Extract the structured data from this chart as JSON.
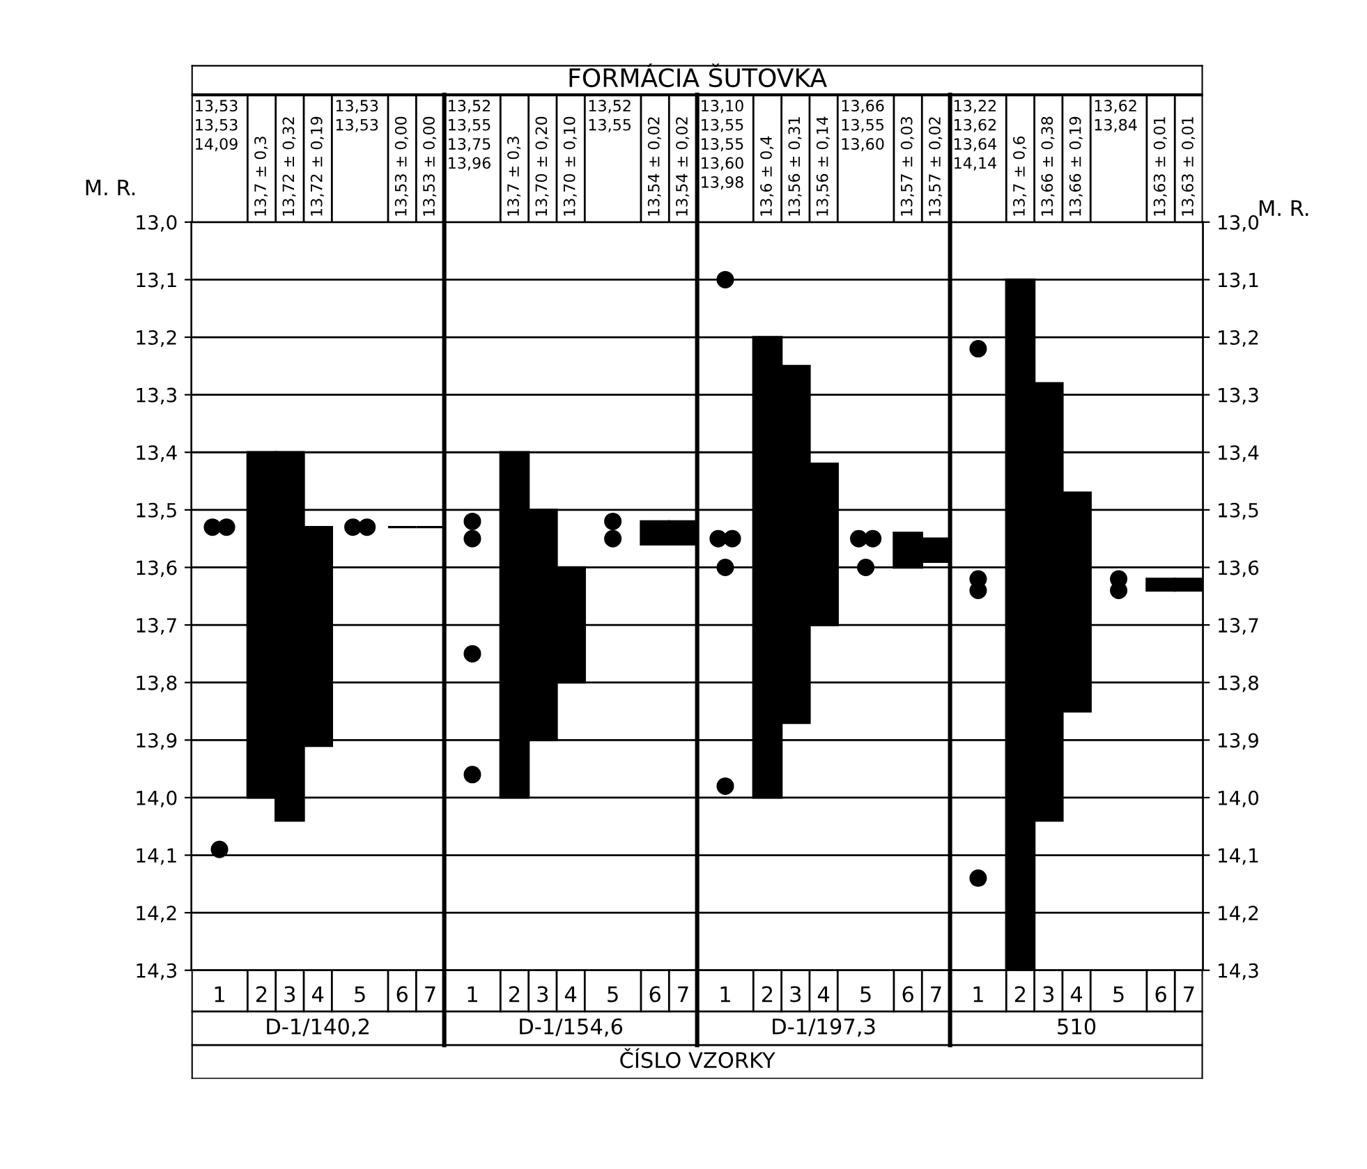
{
  "chart_data": {
    "type": "bar",
    "title": "FORMÁCIA ŠUTOVKA",
    "xlabel": "ČÍSLO VZORKY",
    "ylabel": "M. R.",
    "y2label": "M. R.",
    "categories": [
      "1",
      "2",
      "3",
      "4",
      "5",
      "6",
      "7",
      "1",
      "2",
      "3",
      "4",
      "5",
      "6",
      "7",
      "1",
      "2",
      "3",
      "4",
      "5",
      "6",
      "7",
      "1",
      "2",
      "3",
      "4",
      "5",
      "6",
      "7"
    ],
    "ylim": [
      14.3,
      13.0
    ],
    "yticks": [
      {
        "value": 13.0,
        "label": "13,0"
      },
      {
        "value": 13.1,
        "label": "13,1"
      },
      {
        "value": 13.2,
        "label": "13,2"
      },
      {
        "value": 13.3,
        "label": "13,3"
      },
      {
        "value": 13.4,
        "label": "13,4"
      },
      {
        "value": 13.5,
        "label": "13,5"
      },
      {
        "value": 13.6,
        "label": "13,6"
      },
      {
        "value": 13.7,
        "label": "13,7"
      },
      {
        "value": 13.8,
        "label": "13,8"
      },
      {
        "value": 13.9,
        "label": "13,9"
      },
      {
        "value": 14.0,
        "label": "14,0"
      },
      {
        "value": 14.1,
        "label": "14,1"
      },
      {
        "value": 14.2,
        "label": "14,2"
      },
      {
        "value": 14.3,
        "label": "14,3"
      }
    ],
    "y2lim": [
      14.3,
      13.0
    ],
    "y2ticks": [
      {
        "value": 13.0,
        "label": "13,0"
      },
      {
        "value": 13.1,
        "label": "13,1"
      },
      {
        "value": 13.2,
        "label": "13,2"
      },
      {
        "value": 13.3,
        "label": "13,3"
      },
      {
        "value": 13.4,
        "label": "13,4"
      },
      {
        "value": 13.5,
        "label": "13,5"
      },
      {
        "value": 13.6,
        "label": "13,6"
      },
      {
        "value": 13.7,
        "label": "13,7"
      },
      {
        "value": 13.8,
        "label": "13,8"
      },
      {
        "value": 13.9,
        "label": "13,9"
      },
      {
        "value": 14.0,
        "label": "14,0"
      },
      {
        "value": 14.1,
        "label": "14,1"
      },
      {
        "value": 14.2,
        "label": "14,2"
      },
      {
        "value": 14.3,
        "label": "14,3"
      }
    ],
    "grid": true,
    "series": [
      {
        "color": "#000000",
        "base": [
          null,
          13.4,
          13.4,
          13.53,
          null,
          13.53,
          13.53,
          null,
          13.4,
          13.5,
          13.6,
          null,
          13.52,
          13.52,
          null,
          13.2,
          13.25,
          13.42,
          null,
          13.54,
          13.55,
          null,
          13.1,
          13.28,
          13.47,
          null,
          13.62,
          13.62
        ],
        "values": [
          null,
          0.6,
          0.64,
          0.38,
          null,
          0,
          0,
          null,
          0.6,
          0.4,
          0.2,
          null,
          0.04,
          0.04,
          null,
          0.8,
          0.62,
          0.28,
          null,
          0.06,
          0.04,
          null,
          1.2,
          0.76,
          0.38,
          null,
          0.02,
          0.02
        ]
      },
      {
        "type": "scatter",
        "color": "#000000",
        "marker": "circle",
        "values": [
          13.53,
          null,
          null,
          null,
          13.53,
          null,
          null,
          13.52,
          null,
          null,
          null,
          13.52,
          null,
          null,
          13.1,
          null,
          null,
          null,
          13.55,
          null,
          null,
          13.22,
          null,
          null,
          null,
          13.62,
          null,
          null
        ]
      },
      {
        "type": "scatter",
        "color": "#000000",
        "marker": "circle",
        "values": [
          13.53,
          null,
          null,
          null,
          13.53,
          null,
          null,
          13.55,
          null,
          null,
          null,
          13.55,
          null,
          null,
          13.55,
          null,
          null,
          null,
          13.55,
          null,
          null,
          13.62,
          null,
          null,
          null,
          13.64,
          null,
          null
        ]
      },
      {
        "type": "scatter",
        "color": "#000000",
        "marker": "circle",
        "values": [
          14.09,
          null,
          null,
          null,
          null,
          null,
          null,
          13.75,
          null,
          null,
          null,
          null,
          null,
          null,
          13.55,
          null,
          null,
          null,
          13.6,
          null,
          null,
          13.64,
          null,
          null,
          null,
          null,
          null,
          null
        ]
      },
      {
        "type": "scatter",
        "color": "#000000",
        "marker": "circle",
        "values": [
          null,
          null,
          null,
          null,
          null,
          null,
          null,
          13.96,
          null,
          null,
          null,
          null,
          null,
          null,
          13.6,
          null,
          null,
          null,
          null,
          null,
          null,
          14.14,
          null,
          null,
          null,
          null,
          null,
          null
        ]
      },
      {
        "type": "scatter",
        "color": "#000000",
        "marker": "circle",
        "values": [
          null,
          null,
          null,
          null,
          null,
          null,
          null,
          null,
          null,
          null,
          null,
          null,
          null,
          null,
          13.98,
          null,
          null,
          null,
          null,
          null,
          null,
          null,
          null,
          null,
          null,
          null,
          null,
          null
        ]
      }
    ],
    "annotations": [
      "D-1/140,2",
      "D-1/154,6",
      "D-1/197,3",
      "510",
      "13,53\n13,53\n14,09",
      "13,7 ± 0,3",
      "13,72 ± 0,32",
      "13,72 ± 0,19",
      "13,53\n13,53",
      "13,53 ± 0,00",
      "13,53 ± 0,00",
      "13,52\n13,55\n13,75\n13,96",
      "13,7 ± 0,3",
      "13,70 ± 0,20",
      "13,70 ± 0,10",
      "13,52\n13,55",
      "13,54 ± 0,02",
      "13,54 ± 0,02",
      "13,10\n13,55\n13,55\n13,60\n13,98",
      "13,6 ± 0,4",
      "13,56 ± 0,31",
      "13,56 ± 0,14",
      "13,66\n13,55\n13,60",
      "13,57 ± 0,03",
      "13,57 ± 0,02",
      "13,22\n13,62\n13,64\n14,14",
      "13,7 ± 0,6",
      "13,66 ± 0,38",
      "13,66 ± 0,19",
      "13,62\n13,84",
      "13,63 ± 0,01",
      "13,63 ± 0,01"
    ]
  }
}
